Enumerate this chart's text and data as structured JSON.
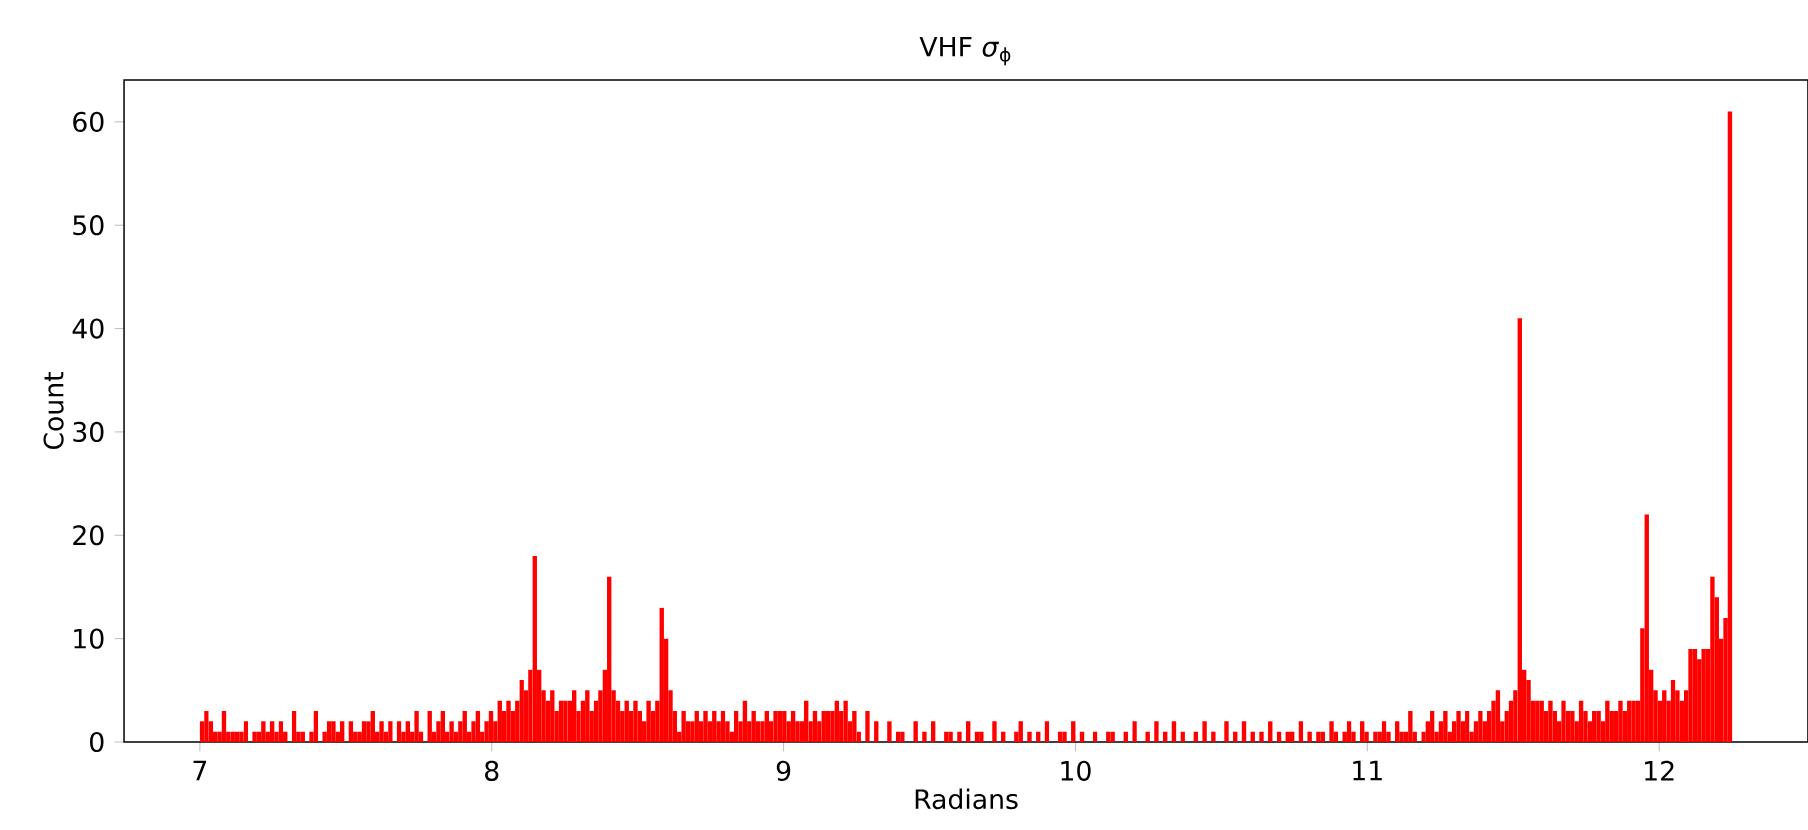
{
  "chart_data": {
    "type": "histogram",
    "title": "VHF *σ*$_{ϕ}$",
    "xlabel": "Radians",
    "ylabel": "Count",
    "color": "#ff0000",
    "bins": [
      7,
      7.015,
      7.03,
      7.045,
      7.06,
      7.075,
      7.09,
      7.105,
      7.12,
      7.135,
      7.15,
      7.165,
      7.18,
      7.195,
      7.21,
      7.225,
      7.24,
      7.255,
      7.27,
      7.285,
      7.3,
      7.315,
      7.33,
      7.345,
      7.36,
      7.375,
      7.39,
      7.405,
      7.42,
      7.435,
      7.45,
      7.465,
      7.48,
      7.495,
      7.51,
      7.525,
      7.54,
      7.555,
      7.57,
      7.585,
      7.6,
      7.615,
      7.63,
      7.645,
      7.66,
      7.675,
      7.69,
      7.705,
      7.72,
      7.735,
      7.75,
      7.765,
      7.78,
      7.795,
      7.81,
      7.825,
      7.84,
      7.855,
      7.87,
      7.885,
      7.9,
      7.915,
      7.93,
      7.945,
      7.96,
      7.975,
      7.99,
      8.005,
      8.02,
      8.035,
      8.05,
      8.065,
      8.08,
      8.095,
      8.11,
      8.125,
      8.14,
      8.155,
      8.17,
      8.185,
      8.2,
      8.215,
      8.23,
      8.245,
      8.26,
      8.275,
      8.29,
      8.305,
      8.32,
      8.335,
      8.35,
      8.365,
      8.38,
      8.395,
      8.41,
      8.425,
      8.44,
      8.455,
      8.47,
      8.485,
      8.5,
      8.515,
      8.53,
      8.545,
      8.56,
      8.575,
      8.59,
      8.605,
      8.62,
      8.635,
      8.65,
      8.665,
      8.68,
      8.695,
      8.71,
      8.725,
      8.74,
      8.755,
      8.77,
      8.785,
      8.8,
      8.815,
      8.83,
      8.845,
      8.86,
      8.875,
      8.89,
      8.905,
      8.92,
      8.935,
      8.95,
      8.965,
      8.98,
      8.995,
      9.01,
      9.025,
      9.04,
      9.055,
      9.07,
      9.085,
      9.1,
      9.115,
      9.13,
      9.145,
      9.16,
      9.175,
      9.19,
      9.205,
      9.22,
      9.235,
      9.25,
      9.265,
      9.28,
      9.295,
      9.31,
      9.325,
      9.34,
      9.355,
      9.37,
      9.385,
      9.4,
      9.415,
      9.43,
      9.445,
      9.46,
      9.475,
      9.49,
      9.505,
      9.52,
      9.535,
      9.55,
      9.565,
      9.58,
      9.595,
      9.61,
      9.625,
      9.64,
      9.655,
      9.67,
      9.685,
      9.7,
      9.715,
      9.73,
      9.745,
      9.76,
      9.775,
      9.79,
      9.805,
      9.82,
      9.835,
      9.85,
      9.865,
      9.88,
      9.895,
      9.91,
      9.925,
      9.94,
      9.955,
      9.97,
      9.985,
      10,
      10.015,
      10.03,
      10.045,
      10.06,
      10.075,
      10.09,
      10.105,
      10.12,
      10.135,
      10.15,
      10.165,
      10.18,
      10.195,
      10.21,
      10.225,
      10.24,
      10.255,
      10.27,
      10.285,
      10.3,
      10.315,
      10.33,
      10.345,
      10.36,
      10.375,
      10.39,
      10.405,
      10.42,
      10.435,
      10.45,
      10.465,
      10.48,
      10.495,
      10.51,
      10.525,
      10.54,
      10.555,
      10.57,
      10.585,
      10.6,
      10.615,
      10.63,
      10.645,
      10.66,
      10.675,
      10.69,
      10.705,
      10.72,
      10.735,
      10.75,
      10.765,
      10.78,
      10.795,
      10.81,
      10.825,
      10.84,
      10.855,
      10.87,
      10.885,
      10.9,
      10.915,
      10.93,
      10.945,
      10.96,
      10.975,
      10.99,
      11.005,
      11.02,
      11.035,
      11.05,
      11.065,
      11.08,
      11.095,
      11.11,
      11.125,
      11.14,
      11.155,
      11.17,
      11.185,
      11.2,
      11.215,
      11.23,
      11.245,
      11.26,
      11.275,
      11.29,
      11.305,
      11.32,
      11.335,
      11.35,
      11.365,
      11.38,
      11.395,
      11.41,
      11.425,
      11.44,
      11.455,
      11.47,
      11.485,
      11.5,
      11.515,
      11.53,
      11.545,
      11.56,
      11.575,
      11.59,
      11.605,
      11.62,
      11.635,
      11.65,
      11.665,
      11.68,
      11.695,
      11.71,
      11.725,
      11.74,
      11.755,
      11.77,
      11.785,
      11.8,
      11.815,
      11.83,
      11.845,
      11.86,
      11.875,
      11.89,
      11.905,
      11.92,
      11.935,
      11.95,
      11.965,
      11.98,
      11.995,
      12.01,
      12.025,
      12.04,
      12.055,
      12.07,
      12.085,
      12.1,
      12.115,
      12.13,
      12.145,
      12.16,
      12.175,
      12.19,
      12.205,
      12.22,
      12.235,
      12.25
    ],
    "values": [
      2,
      3,
      2,
      1,
      1,
      3,
      1,
      1,
      1,
      1,
      2,
      0,
      1,
      1,
      2,
      1,
      2,
      1,
      2,
      1,
      0,
      3,
      1,
      1,
      0,
      1,
      3,
      0,
      1,
      2,
      2,
      1,
      2,
      0,
      2,
      1,
      1,
      2,
      2,
      3,
      1,
      2,
      1,
      2,
      0,
      2,
      1,
      2,
      1,
      3,
      1,
      0,
      3,
      1,
      2,
      3,
      1,
      2,
      1,
      2,
      3,
      1,
      2,
      3,
      1,
      2,
      3,
      2,
      4,
      3,
      4,
      3,
      4,
      6,
      5,
      7,
      18,
      7,
      5,
      4,
      5,
      3,
      4,
      4,
      4,
      5,
      3,
      4,
      5,
      3,
      4,
      5,
      7,
      16,
      5,
      4,
      3,
      4,
      3,
      4,
      3,
      2,
      4,
      3,
      4,
      13,
      10,
      5,
      3,
      1,
      3,
      2,
      2,
      3,
      2,
      3,
      2,
      3,
      2,
      3,
      2,
      1,
      3,
      2,
      4,
      2,
      3,
      2,
      2,
      3,
      2,
      3,
      3,
      3,
      2,
      3,
      2,
      2,
      4,
      2,
      3,
      2,
      3,
      3,
      3,
      4,
      3,
      4,
      2,
      3,
      1,
      0,
      3,
      0,
      2,
      0,
      0,
      2,
      0,
      1,
      1,
      0,
      0,
      2,
      0,
      1,
      0,
      2,
      0,
      0,
      1,
      1,
      0,
      1,
      0,
      2,
      0,
      1,
      1,
      0,
      0,
      2,
      0,
      1,
      0,
      0,
      1,
      2,
      0,
      1,
      0,
      1,
      0,
      2,
      0,
      0,
      1,
      1,
      0,
      2,
      0,
      1,
      0,
      0,
      1,
      0,
      0,
      1,
      1,
      0,
      0,
      1,
      0,
      2,
      0,
      0,
      1,
      0,
      2,
      0,
      1,
      0,
      2,
      0,
      1,
      0,
      0,
      1,
      0,
      2,
      0,
      1,
      0,
      0,
      2,
      0,
      1,
      0,
      2,
      0,
      1,
      0,
      1,
      0,
      2,
      0,
      1,
      0,
      1,
      1,
      0,
      2,
      0,
      1,
      0,
      1,
      1,
      0,
      2,
      1,
      0,
      1,
      2,
      1,
      0,
      2,
      1,
      0,
      1,
      1,
      2,
      1,
      0,
      2,
      1,
      1,
      3,
      1,
      0,
      1,
      2,
      3,
      1,
      2,
      3,
      1,
      2,
      3,
      2,
      3,
      1,
      2,
      3,
      2,
      3,
      4,
      5,
      2,
      3,
      4,
      5,
      41,
      7,
      6,
      4,
      4,
      4,
      3,
      4,
      3,
      2,
      4,
      3,
      3,
      2,
      4,
      3,
      2,
      3,
      3,
      2,
      4,
      3,
      3,
      4,
      3,
      4,
      4,
      4,
      11,
      22,
      7,
      5,
      4,
      5,
      4,
      6,
      5,
      4,
      5,
      9,
      9,
      8,
      9,
      9,
      16,
      14,
      10,
      12,
      61
    ],
    "xlim": [
      6.74,
      12.51
    ],
    "ylim": [
      0,
      64.05
    ],
    "xticks": [
      7,
      8,
      9,
      10,
      11,
      12
    ],
    "yticks": [
      0,
      10,
      20,
      30,
      40,
      50,
      60
    ]
  }
}
